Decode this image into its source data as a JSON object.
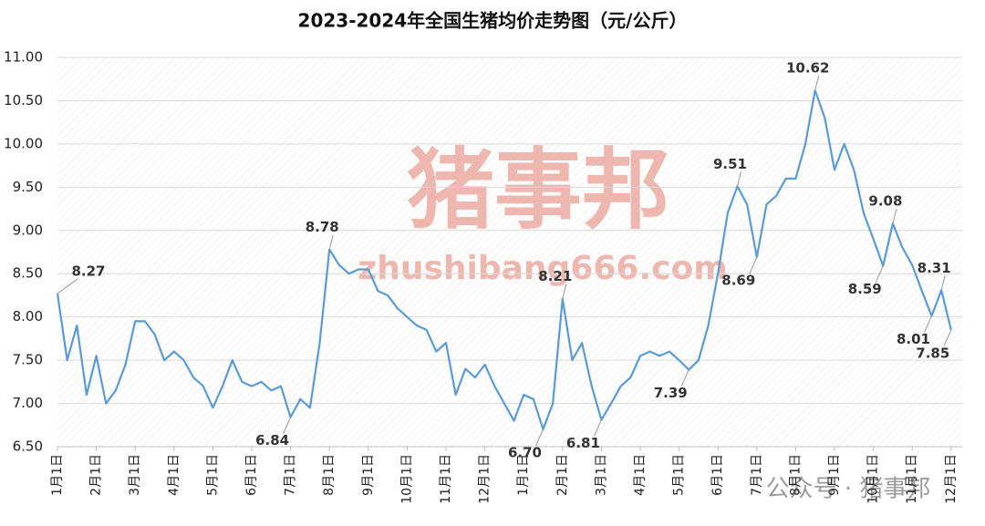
{
  "chart_data": {
    "type": "line",
    "title": "2023-2024年全国生猪均价走势图（元/公斤）",
    "color": "#5b9bd5",
    "grid": true,
    "ylim": [
      6.5,
      11
    ],
    "yticks": [
      {
        "value": 6.5,
        "label": "6.50"
      },
      {
        "value": 7,
        "label": "7.00"
      },
      {
        "value": 7.5,
        "label": "7.50"
      },
      {
        "value": 8,
        "label": "8.00"
      },
      {
        "value": 8.5,
        "label": "8.50"
      },
      {
        "value": 9,
        "label": "9.00"
      },
      {
        "value": 9.5,
        "label": "9.50"
      },
      {
        "value": 10,
        "label": "10.00"
      },
      {
        "value": 10.5,
        "label": "10.50"
      },
      {
        "value": 11,
        "label": "11.00"
      }
    ],
    "categories": [
      "1月1日",
      null,
      null,
      null,
      "2月1日",
      null,
      null,
      null,
      "3月1日",
      null,
      null,
      null,
      "4月1日",
      null,
      null,
      null,
      "5月1日",
      null,
      null,
      null,
      "6月1日",
      null,
      null,
      null,
      "7月1日",
      null,
      null,
      null,
      "8月1日",
      null,
      null,
      null,
      "9月1日",
      null,
      null,
      null,
      "10月1日",
      null,
      null,
      null,
      "11月1日",
      null,
      null,
      null,
      "12月1日",
      null,
      null,
      null,
      "1月1日",
      null,
      null,
      null,
      "2月1日",
      null,
      null,
      null,
      "3月1日",
      null,
      null,
      null,
      "4月1日",
      null,
      null,
      null,
      "5月1日",
      null,
      null,
      null,
      "6月1日",
      null,
      null,
      null,
      "7月1日",
      null,
      null,
      null,
      "8月1日",
      null,
      null,
      null,
      "9月1日",
      null,
      null,
      null,
      "10月1日",
      null,
      null,
      null,
      "11月1日",
      null,
      null,
      null,
      "12月1日"
    ],
    "values": [
      8.27,
      7.5,
      7.9,
      7.1,
      7.55,
      7.0,
      7.15,
      7.45,
      7.95,
      7.95,
      7.8,
      7.5,
      7.6,
      7.5,
      7.3,
      7.2,
      6.95,
      7.2,
      7.5,
      7.25,
      7.2,
      7.25,
      7.15,
      7.2,
      6.84,
      7.05,
      6.95,
      7.7,
      8.78,
      8.6,
      8.5,
      8.55,
      8.55,
      8.3,
      8.25,
      8.1,
      8.0,
      7.9,
      7.85,
      7.6,
      7.7,
      7.1,
      7.4,
      7.3,
      7.45,
      7.2,
      7.0,
      6.8,
      7.1,
      7.05,
      6.7,
      7.0,
      8.21,
      7.5,
      7.7,
      7.2,
      6.81,
      7.0,
      7.2,
      7.3,
      7.55,
      7.6,
      7.55,
      7.6,
      7.5,
      7.39,
      7.5,
      7.9,
      8.5,
      9.2,
      9.51,
      9.3,
      8.69,
      9.3,
      9.4,
      9.6,
      9.6,
      10.0,
      10.62,
      10.3,
      9.7,
      10.0,
      9.7,
      9.2,
      8.9,
      8.59,
      9.08,
      8.8,
      8.6,
      8.3,
      8.01,
      8.31,
      7.85
    ],
    "value_labels": [
      "8.27",
      null,
      null,
      null,
      null,
      null,
      null,
      null,
      null,
      null,
      null,
      null,
      null,
      null,
      null,
      null,
      null,
      null,
      null,
      null,
      null,
      null,
      null,
      null,
      "6.84",
      null,
      null,
      null,
      "8.78",
      null,
      null,
      null,
      null,
      null,
      null,
      null,
      null,
      null,
      null,
      null,
      null,
      null,
      null,
      null,
      null,
      null,
      null,
      null,
      null,
      null,
      "6.70",
      null,
      "8.21",
      null,
      null,
      null,
      "6.81",
      null,
      null,
      null,
      null,
      null,
      null,
      null,
      null,
      "7.39",
      null,
      null,
      null,
      null,
      "9.51",
      null,
      "8.69",
      null,
      null,
      null,
      null,
      null,
      "10.62",
      null,
      null,
      null,
      null,
      null,
      null,
      "8.59",
      "9.08",
      null,
      null,
      null,
      "8.01",
      "8.31",
      "7.85"
    ],
    "watermarks": [
      "猪事邦",
      "zhushibang666.com",
      "公众号 · 猪事邦"
    ]
  }
}
